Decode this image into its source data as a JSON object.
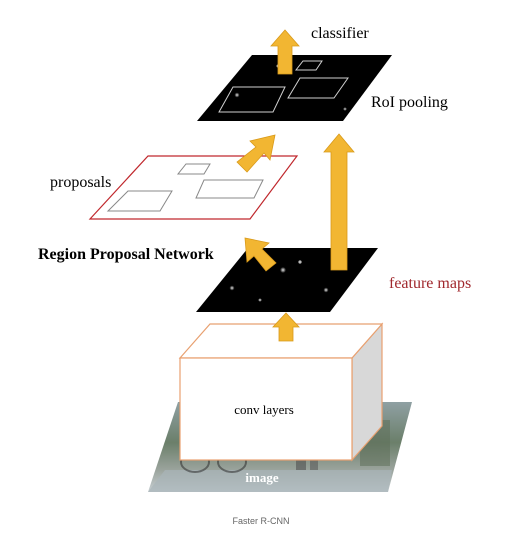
{
  "diagram": {
    "labels": {
      "classifier": "classifier",
      "roi_pooling": "RoI pooling",
      "proposals": "proposals",
      "rpn": "Region Proposal Network",
      "feature_maps": "feature maps",
      "conv_layers": "conv layers",
      "image": "image"
    },
    "caption": "Faster R-CNN"
  },
  "colors": {
    "arrow": "#f2b632",
    "arrow_edge": "#d99a1a",
    "feature_label": "#a0282d",
    "proposal_border": "#c0282d",
    "map_fill": "#000000",
    "box_edge": "#e8a070",
    "box_side": "#d8d8d8",
    "caption": "#666666"
  }
}
